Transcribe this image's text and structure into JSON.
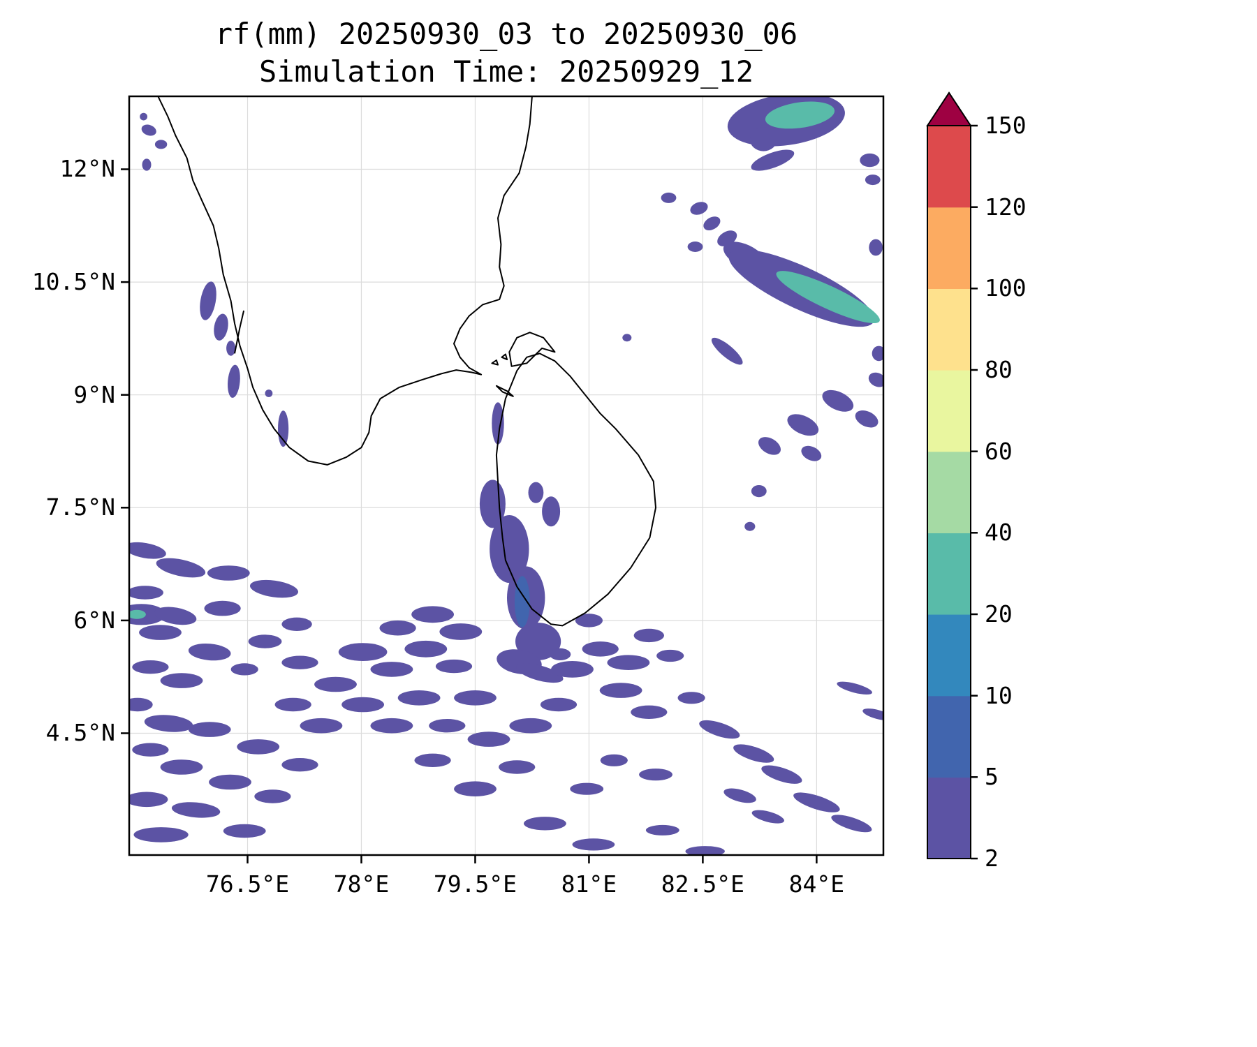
{
  "chart_data": {
    "type": "heatmap",
    "title": "rf(mm) 20250930_03 to 20250930_06",
    "subtitle": "Simulation Time: 20250929_12",
    "variable": "rf",
    "units": "mm",
    "lon_range": [
      74.94,
      84.88
    ],
    "lat_range": [
      2.88,
      12.97
    ],
    "grid": true,
    "legend_position": "right",
    "x_ticks": [
      {
        "value": 76.5,
        "label": "76.5°E"
      },
      {
        "value": 78,
        "label": "78°E"
      },
      {
        "value": 79.5,
        "label": "79.5°E"
      },
      {
        "value": 81,
        "label": "81°E"
      },
      {
        "value": 82.5,
        "label": "82.5°E"
      },
      {
        "value": 84,
        "label": "84°E"
      }
    ],
    "y_ticks": [
      {
        "value": 12,
        "label": "12°N"
      },
      {
        "value": 10.5,
        "label": "10.5°N"
      },
      {
        "value": 9,
        "label": "9°N"
      },
      {
        "value": 7.5,
        "label": "7.5°N"
      },
      {
        "value": 6,
        "label": "6°N"
      },
      {
        "value": 4.5,
        "label": "4.5°N"
      }
    ],
    "colorbar": {
      "levels": [
        2,
        5,
        10,
        20,
        40,
        60,
        80,
        100,
        120,
        150
      ],
      "labels": [
        "2",
        "5",
        "10",
        "20",
        "40",
        "60",
        "80",
        "100",
        "120",
        "150"
      ],
      "colors": [
        "#5c53a4",
        "#4165ae",
        "#3388bd",
        "#59bba9",
        "#a5daa4",
        "#e9f69f",
        "#fee18d",
        "#fcab61",
        "#dd4a4c"
      ],
      "over_color": "#9e0142",
      "extend": "max"
    },
    "coastlines": [
      {
        "closed": false,
        "points": [
          [
            75.32,
            12.97
          ],
          [
            75.45,
            12.7
          ],
          [
            75.55,
            12.45
          ],
          [
            75.7,
            12.15
          ],
          [
            75.78,
            11.85
          ],
          [
            75.9,
            11.58
          ],
          [
            76.05,
            11.25
          ],
          [
            76.12,
            10.95
          ],
          [
            76.18,
            10.6
          ],
          [
            76.28,
            10.25
          ],
          [
            76.33,
            9.95
          ],
          [
            76.4,
            9.65
          ],
          [
            76.5,
            9.35
          ],
          [
            76.57,
            9.1
          ],
          [
            76.7,
            8.8
          ],
          [
            76.85,
            8.55
          ],
          [
            77.05,
            8.3
          ],
          [
            77.3,
            8.12
          ],
          [
            77.55,
            8.07
          ],
          [
            77.8,
            8.17
          ],
          [
            78.0,
            8.3
          ],
          [
            78.1,
            8.5
          ],
          [
            78.13,
            8.72
          ],
          [
            78.25,
            8.95
          ],
          [
            78.5,
            9.1
          ],
          [
            78.8,
            9.2
          ],
          [
            79.05,
            9.28
          ],
          [
            79.25,
            9.33
          ],
          [
            79.45,
            9.3
          ],
          [
            79.58,
            9.27
          ],
          [
            79.42,
            9.36
          ],
          [
            79.3,
            9.5
          ],
          [
            79.22,
            9.68
          ],
          [
            79.3,
            9.88
          ],
          [
            79.42,
            10.05
          ],
          [
            79.6,
            10.2
          ],
          [
            79.82,
            10.27
          ],
          [
            79.88,
            10.45
          ],
          [
            79.82,
            10.7
          ],
          [
            79.84,
            11.0
          ],
          [
            79.8,
            11.35
          ],
          [
            79.88,
            11.65
          ],
          [
            80.08,
            11.95
          ],
          [
            80.17,
            12.3
          ],
          [
            80.22,
            12.6
          ],
          [
            80.25,
            12.97
          ]
        ]
      },
      {
        "closed": true,
        "points": [
          [
            79.9,
            8.95
          ],
          [
            79.82,
            8.55
          ],
          [
            79.78,
            8.2
          ],
          [
            79.8,
            7.85
          ],
          [
            79.82,
            7.5
          ],
          [
            79.86,
            7.1
          ],
          [
            79.9,
            6.8
          ],
          [
            80.05,
            6.45
          ],
          [
            80.25,
            6.15
          ],
          [
            80.5,
            5.95
          ],
          [
            80.65,
            5.93
          ],
          [
            80.95,
            6.1
          ],
          [
            81.25,
            6.35
          ],
          [
            81.55,
            6.7
          ],
          [
            81.8,
            7.1
          ],
          [
            81.88,
            7.5
          ],
          [
            81.85,
            7.85
          ],
          [
            81.65,
            8.2
          ],
          [
            81.35,
            8.55
          ],
          [
            81.15,
            8.75
          ],
          [
            80.95,
            9.0
          ],
          [
            80.75,
            9.25
          ],
          [
            80.55,
            9.45
          ],
          [
            80.35,
            9.55
          ],
          [
            80.18,
            9.5
          ],
          [
            80.05,
            9.32
          ],
          [
            79.97,
            9.12
          ]
        ]
      },
      {
        "closed": true,
        "points": [
          [
            79.98,
            9.38
          ],
          [
            80.18,
            9.42
          ],
          [
            80.38,
            9.62
          ],
          [
            80.55,
            9.57
          ],
          [
            80.4,
            9.76
          ],
          [
            80.22,
            9.83
          ],
          [
            80.05,
            9.76
          ],
          [
            79.95,
            9.57
          ]
        ]
      },
      {
        "closed": true,
        "points": [
          [
            79.78,
            9.12
          ],
          [
            79.92,
            9.05
          ],
          [
            80.0,
            8.98
          ],
          [
            79.86,
            9.04
          ]
        ]
      },
      {
        "closed": true,
        "points": [
          [
            79.72,
            9.42
          ],
          [
            79.8,
            9.4
          ],
          [
            79.78,
            9.46
          ]
        ]
      },
      {
        "closed": true,
        "points": [
          [
            79.85,
            9.5
          ],
          [
            79.92,
            9.47
          ],
          [
            79.9,
            9.54
          ]
        ]
      },
      {
        "closed": false,
        "points": [
          [
            76.33,
            9.55
          ],
          [
            76.4,
            9.9
          ],
          [
            76.45,
            10.12
          ]
        ]
      }
    ],
    "patches": [
      [
        83.6,
        12.66,
        0.78,
        0.34,
        -8,
        0
      ],
      [
        83.78,
        12.72,
        0.46,
        0.17,
        -8,
        3
      ],
      [
        83.3,
        12.4,
        0.18,
        0.16,
        0,
        0
      ],
      [
        83.42,
        12.12,
        0.3,
        0.1,
        -20,
        0
      ],
      [
        84.7,
        12.12,
        0.13,
        0.09,
        0,
        0
      ],
      [
        84.74,
        11.86,
        0.1,
        0.07,
        0,
        0
      ],
      [
        82.05,
        11.62,
        0.1,
        0.07,
        0,
        0
      ],
      [
        82.45,
        11.48,
        0.12,
        0.08,
        -20,
        0
      ],
      [
        82.62,
        11.28,
        0.12,
        0.08,
        -30,
        0
      ],
      [
        82.82,
        11.08,
        0.14,
        0.09,
        -30,
        0
      ],
      [
        82.4,
        10.97,
        0.1,
        0.07,
        0,
        0
      ],
      [
        84.78,
        10.96,
        0.09,
        0.11,
        0,
        0
      ],
      [
        83.05,
        10.85,
        0.3,
        0.15,
        25,
        0
      ],
      [
        83.15,
        10.78,
        0.2,
        0.1,
        25,
        3
      ],
      [
        83.8,
        10.42,
        1.05,
        0.28,
        25,
        0
      ],
      [
        84.15,
        10.3,
        0.75,
        0.15,
        25,
        3
      ],
      [
        82.82,
        9.58,
        0.26,
        0.08,
        40,
        0
      ],
      [
        84.82,
        9.55,
        0.09,
        0.1,
        0,
        0
      ],
      [
        84.8,
        9.2,
        0.12,
        0.09,
        25,
        0
      ],
      [
        84.28,
        8.92,
        0.22,
        0.12,
        25,
        0
      ],
      [
        84.66,
        8.68,
        0.16,
        0.1,
        25,
        0
      ],
      [
        83.82,
        8.6,
        0.22,
        0.12,
        25,
        0
      ],
      [
        83.38,
        8.32,
        0.16,
        0.1,
        30,
        0
      ],
      [
        83.93,
        8.22,
        0.14,
        0.09,
        25,
        0
      ],
      [
        83.24,
        7.72,
        0.1,
        0.08,
        0,
        0
      ],
      [
        83.12,
        7.25,
        0.07,
        0.06,
        0,
        0
      ],
      [
        81.5,
        9.76,
        0.06,
        0.05,
        0,
        0
      ],
      [
        75.98,
        10.25,
        0.1,
        0.26,
        10,
        0
      ],
      [
        76.15,
        9.9,
        0.09,
        0.18,
        10,
        0
      ],
      [
        76.28,
        9.62,
        0.06,
        0.1,
        0,
        0
      ],
      [
        76.32,
        9.18,
        0.08,
        0.22,
        5,
        0
      ],
      [
        76.78,
        9.02,
        0.05,
        0.05,
        0,
        0
      ],
      [
        76.97,
        8.55,
        0.07,
        0.24,
        0,
        0
      ],
      [
        75.2,
        12.52,
        0.1,
        0.07,
        20,
        0
      ],
      [
        75.36,
        12.33,
        0.08,
        0.06,
        0,
        0
      ],
      [
        75.17,
        12.06,
        0.06,
        0.08,
        0,
        0
      ],
      [
        75.13,
        12.7,
        0.05,
        0.05,
        0,
        0
      ],
      [
        79.8,
        8.62,
        0.08,
        0.28,
        0,
        0
      ],
      [
        79.73,
        7.55,
        0.17,
        0.32,
        0,
        0
      ],
      [
        79.95,
        6.95,
        0.26,
        0.45,
        0,
        0
      ],
      [
        80.17,
        6.3,
        0.25,
        0.42,
        0,
        0
      ],
      [
        80.33,
        5.72,
        0.3,
        0.25,
        0,
        0
      ],
      [
        80.08,
        5.45,
        0.3,
        0.16,
        10,
        0
      ],
      [
        80.12,
        6.25,
        0.1,
        0.34,
        0,
        1
      ],
      [
        80.5,
        7.45,
        0.12,
        0.2,
        0,
        0
      ],
      [
        80.3,
        7.7,
        0.1,
        0.14,
        0,
        0
      ],
      [
        80.35,
        5.3,
        0.32,
        0.1,
        15,
        0
      ],
      [
        80.62,
        5.55,
        0.14,
        0.08,
        0,
        0
      ],
      [
        75.15,
        6.93,
        0.28,
        0.1,
        10,
        0
      ],
      [
        75.62,
        6.7,
        0.33,
        0.11,
        12,
        0
      ],
      [
        76.25,
        6.63,
        0.28,
        0.1,
        0,
        0
      ],
      [
        76.85,
        6.42,
        0.32,
        0.11,
        8,
        0
      ],
      [
        75.15,
        6.37,
        0.24,
        0.09,
        0,
        0
      ],
      [
        75.1,
        6.08,
        0.32,
        0.14,
        0,
        0
      ],
      [
        75.04,
        6.08,
        0.12,
        0.06,
        0,
        3
      ],
      [
        75.55,
        6.06,
        0.28,
        0.11,
        10,
        0
      ],
      [
        76.17,
        6.16,
        0.24,
        0.1,
        0,
        0
      ],
      [
        75.35,
        5.84,
        0.28,
        0.1,
        0,
        0
      ],
      [
        76.0,
        5.58,
        0.28,
        0.11,
        5,
        0
      ],
      [
        75.22,
        5.38,
        0.24,
        0.09,
        0,
        0
      ],
      [
        75.63,
        5.2,
        0.28,
        0.1,
        0,
        0
      ],
      [
        75.05,
        4.88,
        0.2,
        0.09,
        0,
        0
      ],
      [
        75.46,
        4.63,
        0.32,
        0.11,
        5,
        0
      ],
      [
        76.0,
        4.55,
        0.28,
        0.1,
        0,
        0
      ],
      [
        75.22,
        4.28,
        0.24,
        0.09,
        0,
        0
      ],
      [
        75.63,
        4.05,
        0.28,
        0.1,
        0,
        0
      ],
      [
        75.17,
        3.62,
        0.28,
        0.1,
        0,
        0
      ],
      [
        75.82,
        3.48,
        0.32,
        0.1,
        5,
        0
      ],
      [
        75.36,
        3.15,
        0.36,
        0.1,
        0,
        0
      ],
      [
        76.46,
        3.2,
        0.28,
        0.09,
        0,
        0
      ],
      [
        76.27,
        3.85,
        0.28,
        0.1,
        0,
        0
      ],
      [
        76.83,
        3.66,
        0.24,
        0.09,
        0,
        0
      ],
      [
        76.64,
        4.32,
        0.28,
        0.1,
        0,
        0
      ],
      [
        77.19,
        4.08,
        0.24,
        0.09,
        0,
        0
      ],
      [
        77.1,
        4.88,
        0.24,
        0.09,
        0,
        0
      ],
      [
        77.47,
        4.6,
        0.28,
        0.1,
        0,
        0
      ],
      [
        77.66,
        5.15,
        0.28,
        0.1,
        0,
        0
      ],
      [
        77.19,
        5.44,
        0.24,
        0.09,
        0,
        0
      ],
      [
        78.02,
        4.88,
        0.28,
        0.1,
        0,
        0
      ],
      [
        78.4,
        4.6,
        0.28,
        0.1,
        0,
        0
      ],
      [
        78.76,
        4.97,
        0.28,
        0.1,
        0,
        0
      ],
      [
        78.02,
        5.58,
        0.32,
        0.12,
        0,
        0
      ],
      [
        78.4,
        5.35,
        0.28,
        0.1,
        0,
        0
      ],
      [
        78.85,
        5.62,
        0.28,
        0.11,
        0,
        0
      ],
      [
        79.22,
        5.39,
        0.24,
        0.09,
        0,
        0
      ],
      [
        79.31,
        5.85,
        0.28,
        0.11,
        0,
        0
      ],
      [
        78.94,
        6.08,
        0.28,
        0.11,
        0,
        0
      ],
      [
        78.48,
        5.9,
        0.24,
        0.1,
        0,
        0
      ],
      [
        77.15,
        5.95,
        0.2,
        0.09,
        0,
        0
      ],
      [
        76.73,
        5.72,
        0.22,
        0.09,
        0,
        0
      ],
      [
        76.46,
        5.35,
        0.18,
        0.08,
        0,
        0
      ],
      [
        79.5,
        4.97,
        0.28,
        0.1,
        0,
        0
      ],
      [
        79.13,
        4.6,
        0.24,
        0.09,
        0,
        0
      ],
      [
        79.68,
        4.42,
        0.28,
        0.1,
        0,
        0
      ],
      [
        78.94,
        4.14,
        0.24,
        0.09,
        0,
        0
      ],
      [
        79.5,
        3.76,
        0.28,
        0.1,
        0,
        0
      ],
      [
        80.05,
        4.05,
        0.24,
        0.09,
        0,
        0
      ],
      [
        80.23,
        4.6,
        0.28,
        0.1,
        0,
        0
      ],
      [
        80.6,
        4.88,
        0.24,
        0.09,
        0,
        0
      ],
      [
        80.78,
        5.35,
        0.28,
        0.11,
        0,
        0
      ],
      [
        81.0,
        6.0,
        0.18,
        0.09,
        0,
        0
      ],
      [
        81.15,
        5.62,
        0.24,
        0.1,
        0,
        0
      ],
      [
        81.52,
        5.44,
        0.28,
        0.1,
        0,
        0
      ],
      [
        81.79,
        5.8,
        0.2,
        0.09,
        0,
        0
      ],
      [
        82.07,
        5.53,
        0.18,
        0.08,
        0,
        0
      ],
      [
        81.42,
        5.07,
        0.28,
        0.1,
        0,
        0
      ],
      [
        81.79,
        4.78,
        0.24,
        0.09,
        0,
        0
      ],
      [
        82.35,
        4.97,
        0.18,
        0.08,
        0,
        0
      ],
      [
        82.72,
        4.55,
        0.28,
        0.09,
        18,
        0
      ],
      [
        83.17,
        4.23,
        0.28,
        0.09,
        18,
        0
      ],
      [
        83.54,
        3.95,
        0.28,
        0.09,
        18,
        0
      ],
      [
        84.0,
        3.58,
        0.32,
        0.09,
        18,
        0
      ],
      [
        84.46,
        3.3,
        0.28,
        0.08,
        18,
        0
      ],
      [
        82.99,
        3.67,
        0.22,
        0.08,
        15,
        0
      ],
      [
        83.36,
        3.39,
        0.22,
        0.07,
        15,
        0
      ],
      [
        81.88,
        3.95,
        0.22,
        0.08,
        0,
        0
      ],
      [
        81.33,
        4.14,
        0.18,
        0.08,
        0,
        0
      ],
      [
        80.97,
        3.76,
        0.22,
        0.08,
        0,
        0
      ],
      [
        80.42,
        3.3,
        0.28,
        0.09,
        0,
        0
      ],
      [
        81.06,
        3.02,
        0.28,
        0.08,
        0,
        0
      ],
      [
        81.97,
        3.21,
        0.22,
        0.07,
        0,
        0
      ],
      [
        82.53,
        2.93,
        0.26,
        0.07,
        0,
        0
      ],
      [
        84.5,
        5.1,
        0.24,
        0.06,
        15,
        0
      ],
      [
        84.8,
        4.75,
        0.2,
        0.06,
        15,
        0
      ]
    ]
  }
}
